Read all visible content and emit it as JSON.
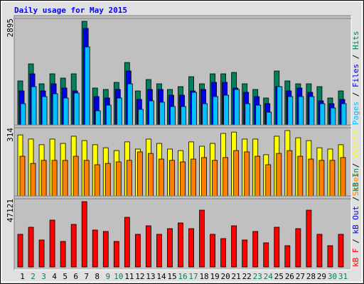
{
  "chart_data": [
    {
      "type": "bar",
      "title": "Daily usage for May 2015",
      "ylim": [
        0,
        2895
      ],
      "yticks": [
        2895
      ],
      "legend_separator": " / ",
      "series": [
        {
          "name": "Hits",
          "color": "#00805c",
          "values": [
            1197,
            1660,
            1119,
            1390,
            1274,
            1390,
            2818,
            1004,
            965,
            1158,
            1698,
            926,
            1235,
            1119,
            965,
            1042,
            1312,
            1119,
            1390,
            1390,
            1428,
            1119,
            965,
            733,
            1467,
            1197,
            1119,
            1119,
            1042,
            733,
            926
          ]
        },
        {
          "name": "Files",
          "color": "#0000e6",
          "values": [
            926,
            1390,
            926,
            1119,
            1004,
            926,
            2625,
            772,
            733,
            965,
            1467,
            695,
            965,
            965,
            810,
            810,
            926,
            965,
            1158,
            1158,
            1004,
            888,
            772,
            579,
            1042,
            926,
            1004,
            888,
            656,
            579,
            695
          ]
        },
        {
          "name": "Pages",
          "color": "#00c0ff",
          "values": [
            579,
            1042,
            772,
            849,
            733,
            868,
            2123,
            386,
            540,
            733,
            1119,
            425,
            656,
            618,
            502,
            502,
            888,
            579,
            772,
            810,
            965,
            579,
            540,
            347,
            1042,
            772,
            772,
            772,
            579,
            463,
            579
          ]
        }
      ]
    },
    {
      "type": "bar",
      "ylim": [
        0,
        314
      ],
      "yticks": [
        314
      ],
      "legend_separator": " / ",
      "series": [
        {
          "name": "Visits",
          "color": "#ffff00",
          "values": [
            281,
            262,
            236,
            262,
            242,
            275,
            255,
            236,
            222,
            209,
            249,
            216,
            262,
            242,
            216,
            209,
            249,
            229,
            242,
            288,
            294,
            262,
            262,
            190,
            275,
            301,
            268,
            255,
            222,
            216,
            236
          ]
        },
        {
          "name": "Sites",
          "color": "#ff8000",
          "values": [
            183,
            150,
            164,
            164,
            164,
            183,
            164,
            144,
            150,
            157,
            164,
            203,
            196,
            170,
            164,
            157,
            170,
            177,
            164,
            177,
            209,
            203,
            183,
            144,
            196,
            209,
            183,
            170,
            164,
            164,
            177
          ]
        }
      ]
    },
    {
      "type": "bar",
      "ylim": [
        0,
        47121
      ],
      "yticks": [
        47121
      ],
      "legend_separator": " / ",
      "extra_legend": [
        {
          "name": "kB Out",
          "color": "#0000e6"
        },
        {
          "name": "kB In",
          "color": "#00805c"
        }
      ],
      "categories": [
        "1",
        "2",
        "3",
        "4",
        "5",
        "6",
        "7",
        "8",
        "9",
        "10",
        "11",
        "12",
        "13",
        "14",
        "15",
        "16",
        "17",
        "18",
        "19",
        "20",
        "21",
        "22",
        "23",
        "24",
        "25",
        "26",
        "27",
        "28",
        "29",
        "30",
        "31"
      ],
      "category_colors": [
        "#000000",
        "#00805c",
        "#00805c",
        "#000000",
        "#000000",
        "#000000",
        "#000000",
        "#000000",
        "#00805c",
        "#00805c",
        "#000000",
        "#000000",
        "#000000",
        "#000000",
        "#000000",
        "#00805c",
        "#00805c",
        "#000000",
        "#000000",
        "#000000",
        "#000000",
        "#000000",
        "#00805c",
        "#00805c",
        "#000000",
        "#000000",
        "#000000",
        "#000000",
        "#000000",
        "#00805c",
        "#00805c"
      ],
      "series": [
        {
          "name": "kB F",
          "color": "#ff0000",
          "values": [
            22579,
            27487,
            18652,
            32396,
            17670,
            29451,
            45158,
            25524,
            24543,
            17670,
            34359,
            22579,
            28469,
            22579,
            26506,
            30433,
            26506,
            39268,
            22579,
            19634,
            28469,
            18652,
            24543,
            16689,
            27487,
            14725,
            26506,
            39268,
            22579,
            14725,
            22579
          ]
        }
      ]
    }
  ]
}
